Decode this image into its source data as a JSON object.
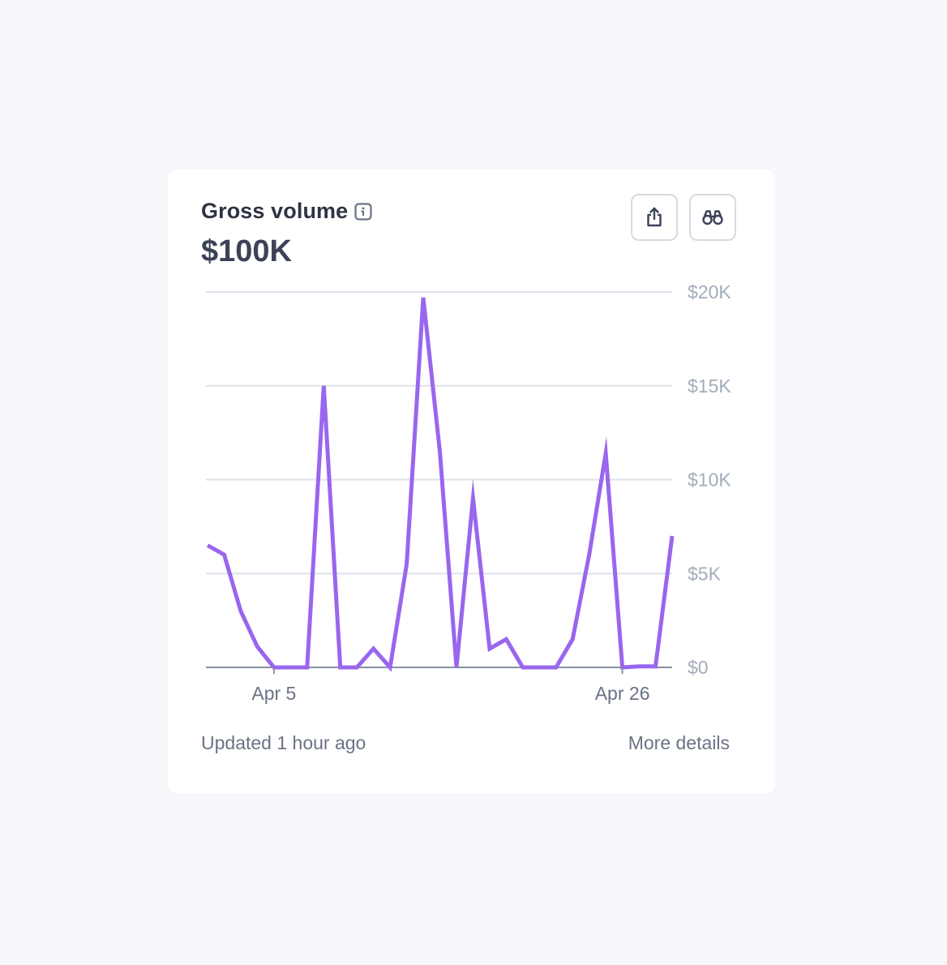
{
  "card": {
    "title": "Gross volume",
    "value": "$100K",
    "footer_updated": "Updated 1 hour ago",
    "footer_link": "More details"
  },
  "icons": {
    "info": "info-icon",
    "share": "share-icon",
    "explore": "binoculars-icon"
  },
  "colors": {
    "line": "#9966ee",
    "grid": "#dde2ea",
    "baseline": "#8792a2",
    "axis_text": "#a3acb9"
  },
  "chart_data": {
    "type": "line",
    "title": "",
    "xlabel": "",
    "ylabel": "",
    "x_ticks": [
      "Apr 5",
      "Apr 26"
    ],
    "y_ticks": [
      "$0",
      "$5K",
      "$10K",
      "$15K",
      "$20K"
    ],
    "ylim": [
      0,
      20000
    ],
    "grid": true,
    "series": [
      {
        "values": [
          6500,
          6000,
          3000,
          1100,
          0,
          0,
          0,
          15000,
          0,
          0,
          1000,
          0,
          5500,
          19700,
          11500,
          0,
          9000,
          1000,
          1500,
          0,
          0,
          0,
          1500,
          6000,
          11400,
          0,
          50,
          50,
          7000
        ]
      }
    ]
  }
}
